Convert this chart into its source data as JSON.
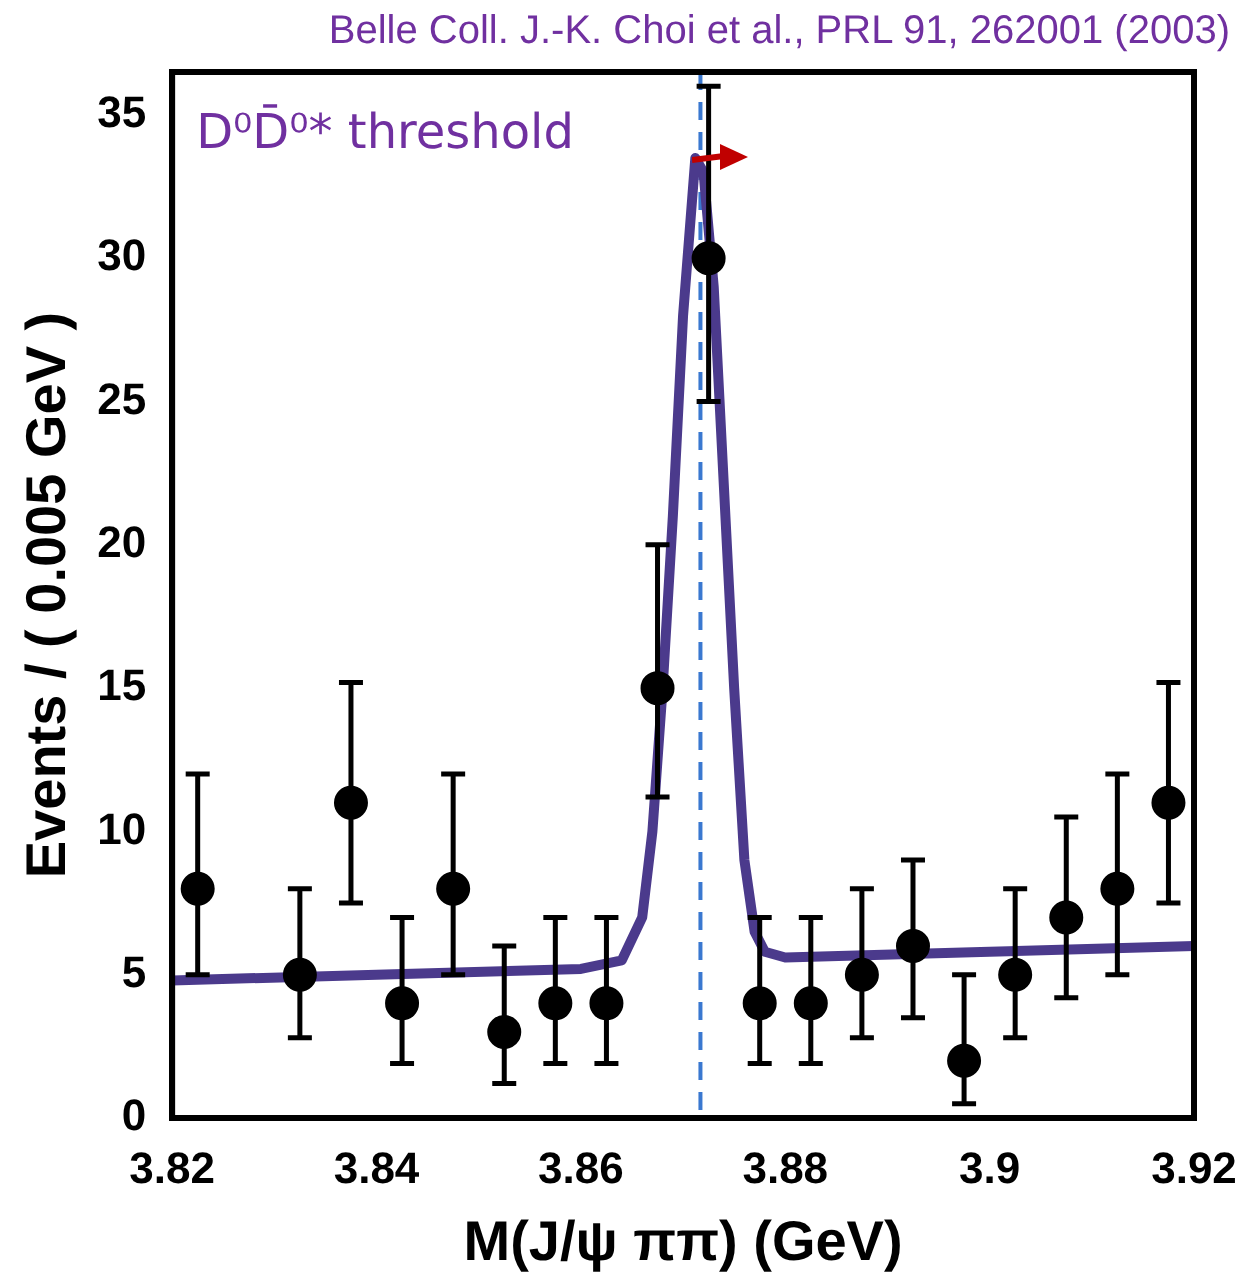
{
  "chart_data": {
    "type": "scatter",
    "xlabel": "M(J/ψ ππ) (GeV)",
    "ylabel": "Events / ( 0.005 GeV )",
    "annotations": [
      "Belle Coll. J.-K. Choi et al., PRL 91, 262001 (2003)"
    ],
    "xlim": [
      3.82,
      3.92
    ],
    "xticks": [
      3.82,
      3.84,
      3.86,
      3.88,
      3.9,
      3.92
    ],
    "ylim": [
      0,
      36.5
    ],
    "yticks": [
      0,
      5,
      10,
      15,
      20,
      25,
      30,
      35
    ],
    "grid": false,
    "legend": false,
    "marker": "circle",
    "ref_lines": [
      {
        "axis": "x",
        "value": 3.8717,
        "label": "D⁰D̄⁰* threshold",
        "color": "#3a78d0",
        "line_style": "dashed"
      }
    ],
    "series": [
      {
        "color": "#000000",
        "x": [
          3.8225,
          3.8325,
          3.8375,
          3.8425,
          3.8475,
          3.8525,
          3.8575,
          3.8625,
          3.8675,
          3.8725,
          3.8775,
          3.8825,
          3.8875,
          3.8925,
          3.8975,
          3.9025,
          3.9075,
          3.9125,
          3.9175
        ],
        "values": [
          8,
          5,
          11,
          4,
          8,
          3,
          4,
          4,
          15,
          30,
          4,
          4,
          5,
          6,
          2,
          5,
          7,
          8,
          11
        ],
        "errors": [
          [
            5,
            12
          ],
          [
            2.8,
            8
          ],
          [
            7.5,
            15.2
          ],
          [
            1.9,
            7
          ],
          [
            5,
            12
          ],
          [
            1.2,
            6
          ],
          [
            1.9,
            7
          ],
          [
            1.9,
            7
          ],
          [
            11.2,
            20
          ],
          [
            25,
            36
          ],
          [
            1.9,
            7
          ],
          [
            1.9,
            7
          ],
          [
            2.8,
            8
          ],
          [
            3.5,
            9
          ],
          [
            0.5,
            5
          ],
          [
            2.8,
            8
          ],
          [
            4.2,
            10.5
          ],
          [
            5,
            12
          ],
          [
            7.5,
            15.2
          ]
        ]
      },
      {
        "type": "line",
        "color": "#4b3a8c",
        "marker": "none",
        "x": [
          3.82,
          3.84,
          3.86,
          3.864,
          3.866,
          3.867,
          3.868,
          3.869,
          3.87,
          3.8712,
          3.872,
          3.873,
          3.874,
          3.875,
          3.876,
          3.877,
          3.878,
          3.88,
          3.9,
          3.92
        ],
        "values": [
          4.8,
          5,
          5.2,
          5.5,
          7,
          10,
          15,
          21,
          28,
          33.5,
          33,
          29,
          22,
          15,
          9,
          6.5,
          5.8,
          5.6,
          5.8,
          6
        ]
      }
    ]
  }
}
